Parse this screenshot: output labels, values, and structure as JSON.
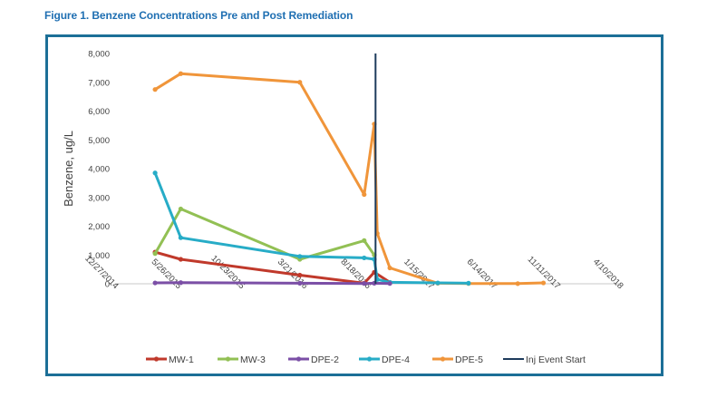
{
  "figure_title": "Figure 1. Benzene Concentrations Pre and Post Remediation",
  "colors": {
    "MW-1": "#c0392b",
    "MW-3": "#92c054",
    "DPE-2": "#7b4fa6",
    "DPE-4": "#27acc7",
    "DPE-5": "#f0953a",
    "Inj Event Start": "#1d3b5c",
    "frame": "#1c6f97"
  },
  "chart_data": {
    "type": "line",
    "ylabel": "Benzene, ug/L",
    "xlabel": "",
    "ylim": [
      0,
      8000
    ],
    "yticks": [
      "0",
      "1,000",
      "2,000",
      "3,000",
      "4,000",
      "5,000",
      "6,000",
      "7,000",
      "8,000"
    ],
    "xlim": [
      "12/27/2014",
      "4/10/2018"
    ],
    "xticks": [
      "12/27/2014",
      "5/26/2015",
      "10/23/2015",
      "3/21/2016",
      "8/18/2016",
      "1/15/2017",
      "6/14/2017",
      "11/11/2017",
      "4/10/2018"
    ],
    "grid": false,
    "legend_position": "bottom",
    "series": [
      {
        "name": "MW-1",
        "points": [
          [
            "4/1/2015",
            1100
          ],
          [
            "6/1/2015",
            850
          ],
          [
            "3/10/2016",
            300
          ],
          [
            "8/10/2016",
            20
          ],
          [
            "9/3/2016",
            400
          ],
          [
            "10/10/2016",
            50
          ]
        ]
      },
      {
        "name": "MW-3",
        "points": [
          [
            "4/1/2015",
            1050
          ],
          [
            "6/1/2015",
            2600
          ],
          [
            "3/10/2016",
            850
          ],
          [
            "8/10/2016",
            1500
          ],
          [
            "9/3/2016",
            1000
          ]
        ]
      },
      {
        "name": "DPE-2",
        "points": [
          [
            "4/1/2015",
            30
          ],
          [
            "6/1/2015",
            40
          ],
          [
            "3/10/2016",
            20
          ],
          [
            "8/10/2016",
            10
          ],
          [
            "9/3/2016",
            20
          ],
          [
            "10/10/2016",
            10
          ]
        ]
      },
      {
        "name": "DPE-4",
        "points": [
          [
            "4/1/2015",
            3850
          ],
          [
            "6/1/2015",
            1600
          ],
          [
            "3/10/2016",
            950
          ],
          [
            "8/10/2016",
            900
          ],
          [
            "9/3/2016",
            850
          ],
          [
            "9/10/2016",
            150
          ],
          [
            "10/10/2016",
            50
          ],
          [
            "2/1/2017",
            30
          ],
          [
            "4/15/2017",
            20
          ]
        ]
      },
      {
        "name": "DPE-5",
        "points": [
          [
            "4/1/2015",
            6750
          ],
          [
            "6/1/2015",
            7300
          ],
          [
            "3/10/2016",
            7000
          ],
          [
            "8/10/2016",
            3100
          ],
          [
            "9/3/2016",
            5550
          ],
          [
            "9/10/2016",
            1750
          ],
          [
            "10/10/2016",
            550
          ],
          [
            "2/1/2017",
            20
          ],
          [
            "4/15/2017",
            10
          ],
          [
            "8/10/2017",
            5
          ],
          [
            "10/10/2017",
            30
          ]
        ]
      }
    ],
    "vertical_line": {
      "name": "Inj Event Start",
      "x": "9/6/2016"
    },
    "legend": [
      "MW-1",
      "MW-3",
      "DPE-2",
      "DPE-4",
      "DPE-5",
      "Inj Event Start"
    ]
  }
}
